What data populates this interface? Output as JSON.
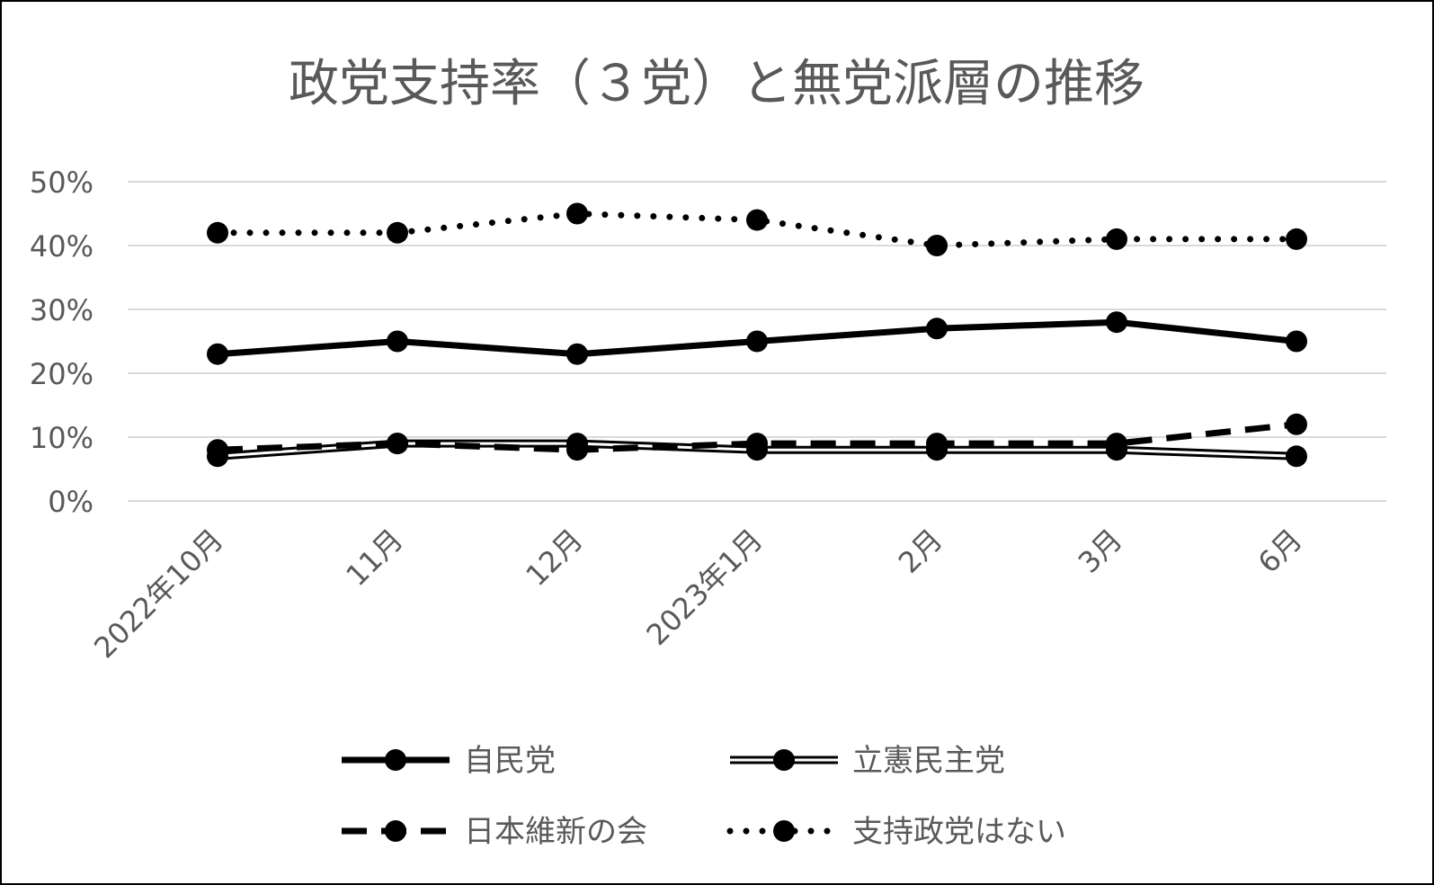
{
  "chart_data": {
    "type": "line",
    "title": "政党支持率（３党）と無党派層の推移",
    "xlabel": "",
    "ylabel": "",
    "categories": [
      "2022年10月",
      "11月",
      "12月",
      "2023年1月",
      "2月",
      "3月",
      "6月"
    ],
    "ylim": [
      0,
      50
    ],
    "yticks": [
      0,
      10,
      20,
      30,
      40,
      50
    ],
    "ytick_labels": [
      "0%",
      "10%",
      "20%",
      "30%",
      "40%",
      "50%"
    ],
    "grid": true,
    "legend_position": "bottom",
    "series": [
      {
        "name": "自民党",
        "style": "solid-thick",
        "values": [
          23,
          25,
          23,
          25,
          27,
          28,
          25
        ]
      },
      {
        "name": "立憲民主党",
        "style": "double-line",
        "values": [
          7,
          9,
          9,
          8,
          8,
          8,
          7
        ]
      },
      {
        "name": "日本維新の会",
        "style": "dashed",
        "values": [
          8,
          9,
          8,
          9,
          9,
          9,
          12
        ]
      },
      {
        "name": "支持政党はない",
        "style": "dotted",
        "values": [
          42,
          42,
          45,
          44,
          40,
          41,
          41
        ]
      }
    ]
  },
  "colors": {
    "line": "#000000",
    "grid": "#d9d9d9",
    "text": "#595959",
    "border": "#000000",
    "background": "#ffffff"
  }
}
